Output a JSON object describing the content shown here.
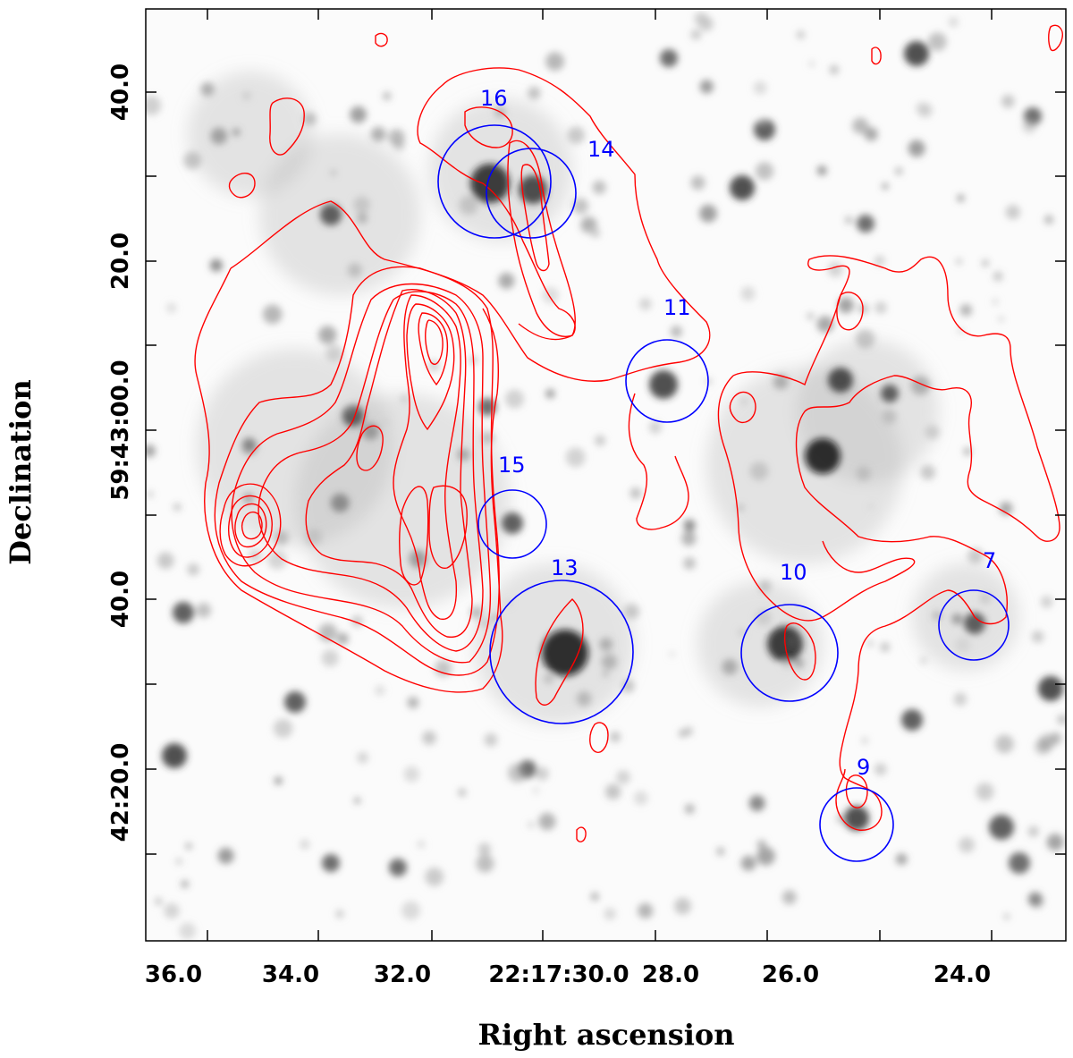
{
  "chart_data": {
    "type": "scatter",
    "xlabel": "Right ascension",
    "ylabel": "Declination",
    "x_ticks": [
      "36.0",
      "34.0",
      "32.0",
      "22:17:30.0",
      "28.0",
      "26.0",
      "24.0"
    ],
    "y_ticks": [
      "40.0",
      "20.0",
      "59:43:00.0",
      "40.0",
      "42:20.0"
    ],
    "grid": false,
    "colors": {
      "contour": "#ff0000",
      "circle": "#0000ff",
      "label": "#0000ff",
      "axis": "#000000",
      "background_image": "grayscale"
    },
    "sources": [
      {
        "label": "16"
      },
      {
        "label": "14"
      },
      {
        "label": "11"
      },
      {
        "label": "15"
      },
      {
        "label": "13"
      },
      {
        "label": "10"
      },
      {
        "label": "7"
      },
      {
        "label": "9"
      }
    ]
  }
}
